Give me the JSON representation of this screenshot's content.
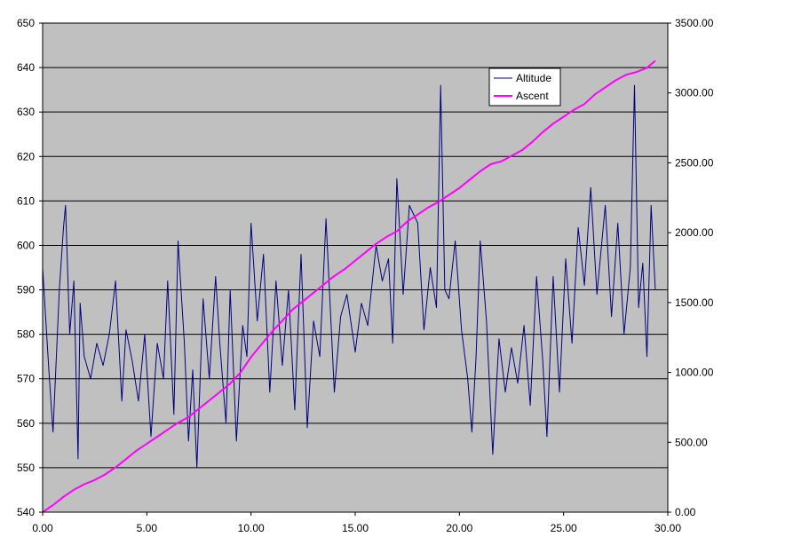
{
  "chart_data": {
    "type": "line",
    "title": "",
    "xlabel": "",
    "ylabel": "",
    "y2label": "",
    "xlim": [
      0,
      30
    ],
    "ylim": [
      540,
      650
    ],
    "y2lim": [
      0,
      3500
    ],
    "grid": true,
    "plot_background": "#c0c0c0",
    "legend_position": "top-right",
    "x_ticks": [
      0,
      5,
      10,
      15,
      20,
      25,
      30
    ],
    "x_tick_labels": [
      "0.00",
      "5.00",
      "10.00",
      "15.00",
      "20.00",
      "25.00",
      "30.00"
    ],
    "y_ticks": [
      540,
      550,
      560,
      570,
      580,
      590,
      600,
      610,
      620,
      630,
      640,
      650
    ],
    "y_tick_labels": [
      "540",
      "550",
      "560",
      "570",
      "580",
      "590",
      "600",
      "610",
      "620",
      "630",
      "640",
      "650"
    ],
    "y2_ticks": [
      0,
      500,
      1000,
      1500,
      2000,
      2500,
      3000,
      3500
    ],
    "y2_tick_labels": [
      "0.00",
      "500.00",
      "1000.00",
      "1500.00",
      "2000.00",
      "2500.00",
      "3000.00",
      "3500.00"
    ],
    "series": [
      {
        "name": "Altitude",
        "axis": "left",
        "color": "#000080",
        "x": [
          0,
          0.3,
          0.5,
          0.8,
          1.0,
          1.1,
          1.3,
          1.5,
          1.7,
          1.8,
          2.0,
          2.3,
          2.6,
          2.9,
          3.2,
          3.5,
          3.8,
          4.0,
          4.3,
          4.6,
          4.9,
          5.2,
          5.5,
          5.8,
          6.0,
          6.3,
          6.5,
          6.8,
          7.0,
          7.2,
          7.4,
          7.7,
          8.0,
          8.3,
          8.5,
          8.8,
          9.0,
          9.3,
          9.6,
          9.8,
          10.0,
          10.3,
          10.6,
          10.9,
          11.2,
          11.5,
          11.8,
          12.1,
          12.4,
          12.7,
          13.0,
          13.3,
          13.6,
          14.0,
          14.3,
          14.6,
          15.0,
          15.3,
          15.6,
          16.0,
          16.3,
          16.6,
          16.8,
          17.0,
          17.3,
          17.6,
          18.0,
          18.3,
          18.6,
          18.9,
          19.1,
          19.3,
          19.5,
          19.8,
          20.1,
          20.4,
          20.6,
          20.8,
          21.0,
          21.3,
          21.6,
          21.9,
          22.2,
          22.5,
          22.8,
          23.1,
          23.4,
          23.7,
          24.0,
          24.2,
          24.5,
          24.8,
          25.1,
          25.4,
          25.7,
          26.0,
          26.3,
          26.6,
          27.0,
          27.3,
          27.6,
          27.9,
          28.2,
          28.4,
          28.6,
          28.8,
          29.0,
          29.2,
          29.4
        ],
        "y": [
          595,
          572,
          558,
          590,
          604,
          609,
          580,
          592,
          552,
          587,
          575,
          570,
          578,
          573,
          580,
          592,
          565,
          581,
          574,
          565,
          580,
          557,
          578,
          570,
          592,
          562,
          601,
          578,
          556,
          572,
          550,
          588,
          570,
          593,
          578,
          560,
          590,
          556,
          582,
          575,
          605,
          583,
          598,
          567,
          592,
          573,
          590,
          563,
          598,
          559,
          583,
          575,
          606,
          567,
          584,
          589,
          576,
          587,
          582,
          600,
          592,
          597,
          578,
          615,
          589,
          609,
          605,
          581,
          595,
          586,
          636,
          590,
          588,
          601,
          581,
          570,
          558,
          575,
          601,
          583,
          553,
          579,
          567,
          577,
          569,
          582,
          564,
          593,
          574,
          557,
          593,
          567,
          597,
          578,
          604,
          591,
          613,
          589,
          609,
          584,
          605,
          580,
          595,
          636,
          586,
          596,
          575,
          609,
          590
        ]
      },
      {
        "name": "Ascent",
        "axis": "right",
        "color": "#ff00ff",
        "x": [
          0,
          0.5,
          1.0,
          1.5,
          2.0,
          2.5,
          3.0,
          3.5,
          4.0,
          4.5,
          5.0,
          5.5,
          6.0,
          6.5,
          7.0,
          7.5,
          8.0,
          8.5,
          9.0,
          9.5,
          10.0,
          10.5,
          11.0,
          11.5,
          12.0,
          12.5,
          13.0,
          13.5,
          14.0,
          14.5,
          15.0,
          15.5,
          16.0,
          16.5,
          17.0,
          17.5,
          18.0,
          18.5,
          19.0,
          19.5,
          20.0,
          20.5,
          21.0,
          21.5,
          22.0,
          22.5,
          23.0,
          23.5,
          24.0,
          24.5,
          25.0,
          25.5,
          26.0,
          26.5,
          27.0,
          27.5,
          28.0,
          28.5,
          29.0,
          29.4
        ],
        "y": [
          0,
          50,
          110,
          160,
          200,
          230,
          270,
          320,
          380,
          440,
          490,
          540,
          590,
          640,
          680,
          740,
          800,
          860,
          920,
          1000,
          1110,
          1200,
          1290,
          1370,
          1450,
          1510,
          1570,
          1630,
          1690,
          1740,
          1800,
          1860,
          1920,
          1970,
          2010,
          2080,
          2130,
          2180,
          2220,
          2270,
          2320,
          2380,
          2440,
          2490,
          2510,
          2550,
          2590,
          2650,
          2720,
          2780,
          2830,
          2880,
          2920,
          2990,
          3040,
          3090,
          3130,
          3150,
          3180,
          3230
        ]
      }
    ]
  }
}
